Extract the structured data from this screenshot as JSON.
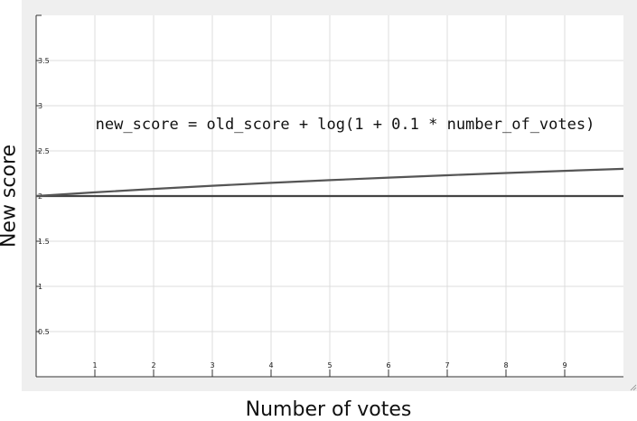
{
  "chart_data": {
    "type": "line",
    "xlabel": "Number of votes",
    "ylabel": "New score",
    "annotation": "new_score = old_score + log(1 + 0.1 * number_of_votes)",
    "xlim": [
      0,
      10
    ],
    "ylim": [
      0,
      4
    ],
    "x_ticks": [
      1,
      2,
      3,
      4,
      5,
      6,
      7,
      8,
      9
    ],
    "y_ticks": [
      0.5,
      1,
      1.5,
      2,
      2.5,
      3,
      3.5
    ],
    "x_tick_labels": [
      "1",
      "2",
      "3",
      "4",
      "5",
      "6",
      "7",
      "8",
      "9"
    ],
    "y_tick_labels": [
      "0.5",
      "1",
      "1.5",
      "2",
      "2.5",
      "3",
      "3.5"
    ],
    "grid": true,
    "series": [
      {
        "color": "#444444",
        "x": [
          0,
          10
        ],
        "y": [
          2,
          2
        ]
      },
      {
        "color": "#555555",
        "x": [
          0,
          1,
          2,
          3,
          4,
          5,
          6,
          7,
          8,
          9,
          10
        ],
        "y": [
          2,
          2.041,
          2.079,
          2.114,
          2.146,
          2.176,
          2.204,
          2.23,
          2.255,
          2.279,
          2.301
        ]
      }
    ]
  }
}
